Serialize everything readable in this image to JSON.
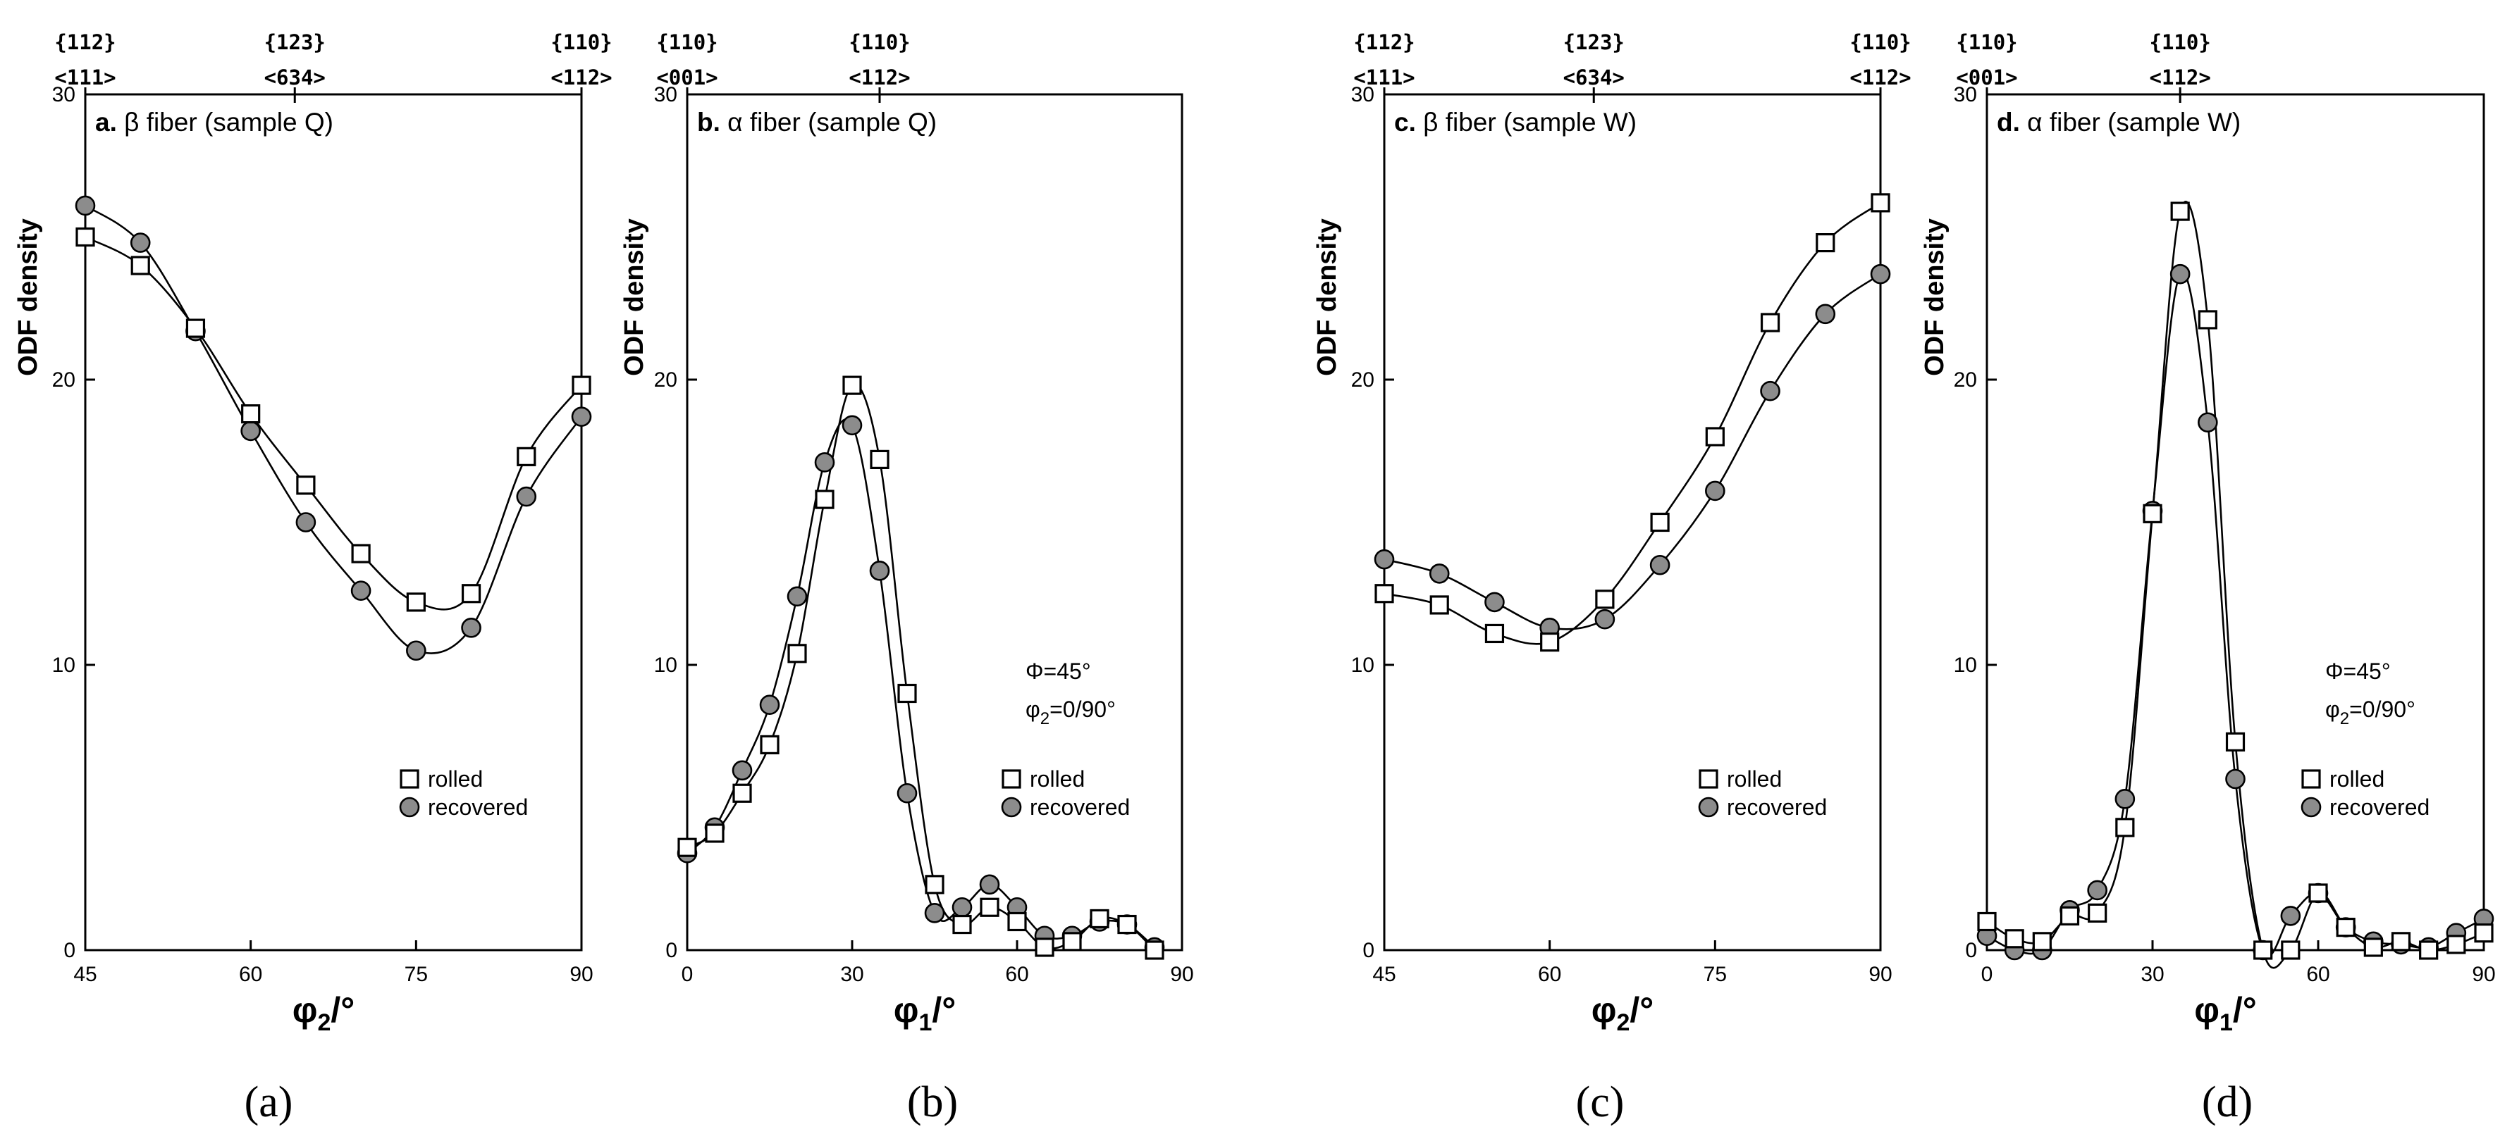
{
  "figure": {
    "legend_rolled": "rolled",
    "legend_recovered": "recovered"
  },
  "chart_data": [
    {
      "id": "a",
      "type": "line",
      "panel_title_prefix": "a.",
      "panel_title_rest": " β fiber (sample Q)",
      "xlabel_main": "φ",
      "xlabel_sub": "2",
      "xlabel_unit": "/°",
      "ylabel": "ODF density",
      "caption": "(a)",
      "xlim": [
        45,
        90
      ],
      "ylim": [
        0,
        30
      ],
      "xticks": [
        45,
        60,
        75,
        90
      ],
      "yticks": [
        0,
        10,
        20,
        30
      ],
      "top_labels": [
        {
          "x": 45,
          "plane": "{112}",
          "dir": "<111>"
        },
        {
          "x": 64,
          "plane": "{123}",
          "dir": "<634>"
        },
        {
          "x": 90,
          "plane": "{110}",
          "dir": "<112>"
        }
      ],
      "annotation": null,
      "series": [
        {
          "name": "rolled",
          "marker": "square",
          "x": [
            45,
            50,
            55,
            60,
            65,
            70,
            75,
            80,
            85,
            90
          ],
          "y": [
            25.0,
            24.0,
            21.8,
            18.8,
            16.3,
            13.9,
            12.2,
            12.5,
            17.3,
            19.8
          ]
        },
        {
          "name": "recovered",
          "marker": "circle",
          "x": [
            45,
            50,
            55,
            60,
            65,
            70,
            75,
            80,
            85,
            90
          ],
          "y": [
            26.1,
            24.8,
            21.7,
            18.2,
            15.0,
            12.6,
            10.5,
            11.3,
            15.9,
            18.7
          ]
        }
      ]
    },
    {
      "id": "b",
      "type": "line",
      "panel_title_prefix": "b.",
      "panel_title_rest": " α fiber (sample Q)",
      "xlabel_main": "φ",
      "xlabel_sub": "1",
      "xlabel_unit": "/°",
      "ylabel": "ODF density",
      "caption": "(b)",
      "xlim": [
        0,
        90
      ],
      "ylim": [
        0,
        30
      ],
      "xticks": [
        0,
        30,
        60,
        90
      ],
      "yticks": [
        0,
        10,
        20,
        30
      ],
      "top_labels": [
        {
          "x": 0,
          "plane": "{110}",
          "dir": "<001>"
        },
        {
          "x": 35,
          "plane": "{110}",
          "dir": "<112>"
        }
      ],
      "annotation": {
        "line1": "Φ=45°",
        "line2_main": "φ",
        "line2_sub": "2",
        "line2_rest": "=0/90°"
      },
      "series": [
        {
          "name": "rolled",
          "marker": "square",
          "x": [
            0,
            5,
            10,
            15,
            20,
            25,
            30,
            35,
            40,
            45,
            50,
            55,
            60,
            65,
            70,
            75,
            80,
            85
          ],
          "y": [
            3.6,
            4.1,
            5.5,
            7.2,
            10.4,
            15.8,
            19.8,
            17.2,
            9.0,
            2.3,
            0.9,
            1.5,
            1.0,
            0.1,
            0.3,
            1.1,
            0.9,
            0.0
          ]
        },
        {
          "name": "recovered",
          "marker": "circle",
          "x": [
            0,
            5,
            10,
            15,
            20,
            25,
            30,
            35,
            40,
            45,
            50,
            55,
            60,
            65,
            70,
            75,
            80,
            85
          ],
          "y": [
            3.4,
            4.3,
            6.3,
            8.6,
            12.4,
            17.1,
            18.4,
            13.3,
            5.5,
            1.3,
            1.5,
            2.3,
            1.5,
            0.5,
            0.5,
            1.0,
            0.9,
            0.1
          ]
        }
      ]
    },
    {
      "id": "c",
      "type": "line",
      "panel_title_prefix": "c.",
      "panel_title_rest": " β fiber (sample W)",
      "xlabel_main": "φ",
      "xlabel_sub": "2",
      "xlabel_unit": "/°",
      "ylabel": "ODF density",
      "caption": "(c)",
      "xlim": [
        45,
        90
      ],
      "ylim": [
        0,
        30
      ],
      "xticks": [
        45,
        60,
        75,
        90
      ],
      "yticks": [
        0,
        10,
        20,
        30
      ],
      "top_labels": [
        {
          "x": 45,
          "plane": "{112}",
          "dir": "<111>"
        },
        {
          "x": 64,
          "plane": "{123}",
          "dir": "<634>"
        },
        {
          "x": 90,
          "plane": "{110}",
          "dir": "<112>"
        }
      ],
      "annotation": null,
      "series": [
        {
          "name": "rolled",
          "marker": "square",
          "x": [
            45,
            50,
            55,
            60,
            65,
            70,
            75,
            80,
            85,
            90
          ],
          "y": [
            12.5,
            12.1,
            11.1,
            10.8,
            12.3,
            15.0,
            18.0,
            22.0,
            24.8,
            26.2
          ]
        },
        {
          "name": "recovered",
          "marker": "circle",
          "x": [
            45,
            50,
            55,
            60,
            65,
            70,
            75,
            80,
            85,
            90
          ],
          "y": [
            13.7,
            13.2,
            12.2,
            11.3,
            11.6,
            13.5,
            16.1,
            19.6,
            22.3,
            23.7
          ]
        }
      ]
    },
    {
      "id": "d",
      "type": "line",
      "panel_title_prefix": "d.",
      "panel_title_rest": " α fiber (sample W)",
      "xlabel_main": "φ",
      "xlabel_sub": "1",
      "xlabel_unit": "/°",
      "ylabel": "ODF density",
      "caption": "(d)",
      "xlim": [
        0,
        90
      ],
      "ylim": [
        0,
        30
      ],
      "xticks": [
        0,
        30,
        60,
        90
      ],
      "yticks": [
        0,
        10,
        20,
        30
      ],
      "top_labels": [
        {
          "x": 0,
          "plane": "{110}",
          "dir": "<001>"
        },
        {
          "x": 35,
          "plane": "{110}",
          "dir": "<112>"
        }
      ],
      "annotation": {
        "line1": "Φ=45°",
        "line2_main": "φ",
        "line2_sub": "2",
        "line2_rest": "=0/90°"
      },
      "series": [
        {
          "name": "rolled",
          "marker": "square",
          "x": [
            0,
            5,
            10,
            15,
            20,
            25,
            30,
            35,
            40,
            45,
            50,
            55,
            60,
            65,
            70,
            75,
            80,
            85,
            90
          ],
          "y": [
            1.0,
            0.4,
            0.3,
            1.2,
            1.3,
            4.3,
            15.3,
            25.9,
            22.1,
            7.3,
            0.0,
            0.0,
            2.0,
            0.8,
            0.1,
            0.3,
            0.0,
            0.2,
            0.6
          ]
        },
        {
          "name": "recovered",
          "marker": "circle",
          "x": [
            0,
            5,
            10,
            15,
            20,
            25,
            30,
            35,
            40,
            45,
            50,
            55,
            60,
            65,
            70,
            75,
            80,
            85,
            90
          ],
          "y": [
            0.5,
            0.0,
            0.0,
            1.4,
            2.1,
            5.3,
            15.4,
            23.7,
            18.5,
            6.0,
            0.0,
            1.2,
            2.0,
            0.8,
            0.3,
            0.2,
            0.1,
            0.6,
            1.1
          ]
        }
      ]
    }
  ]
}
